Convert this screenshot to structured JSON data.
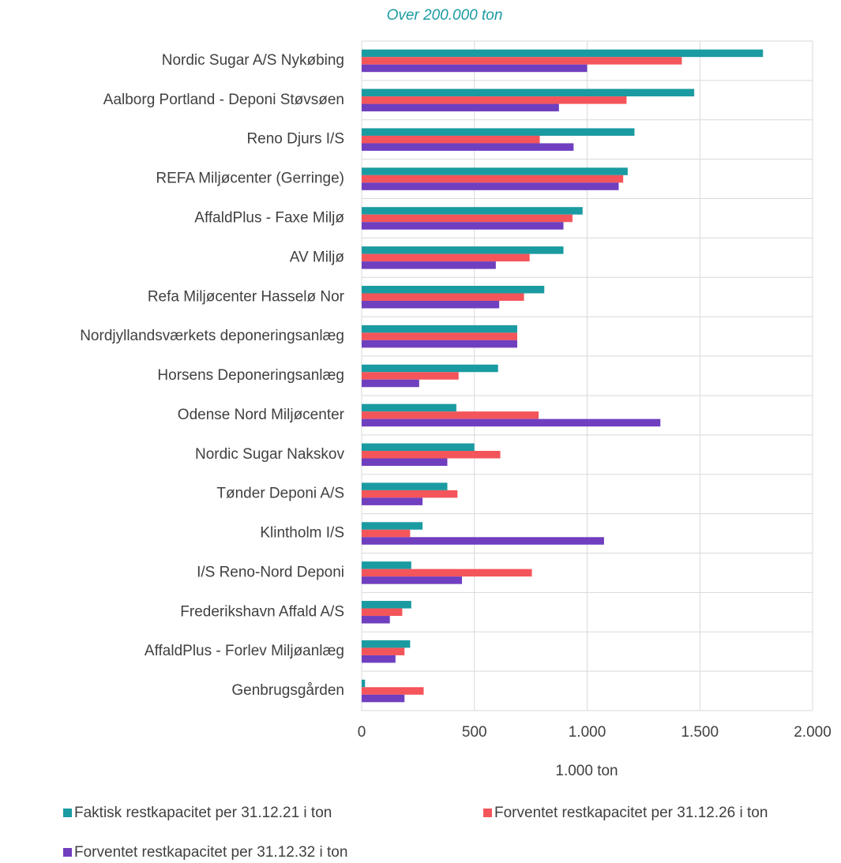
{
  "chart_data": {
    "type": "bar",
    "orientation": "horizontal",
    "title": "Over 200.000 ton",
    "x_label": "1.000 ton",
    "categories": [
      "Nordic Sugar A/S Nykøbing",
      "Aalborg Portland - Deponi Støvsøen",
      "Reno Djurs I/S",
      "REFA Miljøcenter (Gerringe)",
      "AffaldPlus - Faxe Miljø",
      "AV Miljø",
      "Refa Miljøcenter Hasselø Nor",
      "Nordjyllandsværkets deponeringsanlæg",
      "Horsens Deponeringsanlæg",
      "Odense Nord Miljøcenter",
      "Nordic Sugar Nakskov",
      "Tønder Deponi A/S",
      "Klintholm I/S",
      "I/S Reno-Nord Deponi",
      "Frederikshavn Affald A/S",
      "AffaldPlus - Forlev Miljøanlæg",
      "Genbrugsgården"
    ],
    "series": [
      {
        "name": "Faktisk restkapacitet per 31.12.21 i ton",
        "color": "#1a9ba1",
        "values": [
          1780,
          1475,
          1210,
          1180,
          980,
          895,
          810,
          690,
          605,
          420,
          500,
          380,
          270,
          220,
          220,
          215,
          15
        ]
      },
      {
        "name": "Forventet restkapacitet per 31.12.26 i ton",
        "color": "#f4555a",
        "values": [
          1420,
          1175,
          790,
          1160,
          935,
          745,
          720,
          690,
          430,
          785,
          615,
          425,
          215,
          755,
          180,
          190,
          275
        ]
      },
      {
        "name": "Forventet restkapacitet per 31.12.32 i ton",
        "color": "#6f3fbf",
        "values": [
          1000,
          875,
          940,
          1140,
          895,
          595,
          610,
          690,
          255,
          1325,
          380,
          270,
          1075,
          445,
          125,
          150,
          190
        ]
      }
    ],
    "xlim": [
      0,
      2000
    ],
    "xticks": [
      0,
      500,
      {
        "value": 1000,
        "label": "1.000"
      },
      {
        "value": 1500,
        "label": "1.500"
      },
      {
        "value": 2000,
        "label": "2.000"
      }
    ],
    "grid": true,
    "legend": "bottom"
  }
}
